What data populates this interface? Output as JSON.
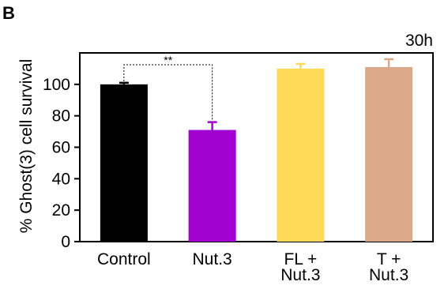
{
  "panel_label": "B",
  "chart_data": {
    "type": "bar",
    "title": "",
    "annotation": "30h",
    "xlabel": "",
    "ylabel": "% Ghost(3) cell survival",
    "ylim": [
      0,
      120
    ],
    "yticks": [
      0,
      20,
      40,
      60,
      80,
      100
    ],
    "grid": false,
    "legend": "none",
    "categories": [
      [
        "Control"
      ],
      [
        "Nut.3"
      ],
      [
        "FL +",
        "Nut.3"
      ],
      [
        "T +",
        "Nut.3"
      ]
    ],
    "values": [
      100,
      71,
      110,
      111
    ],
    "errors": [
      1,
      5,
      3,
      5
    ],
    "colors": [
      "#000000",
      "#a100d1",
      "#fed957",
      "#dba98a"
    ],
    "significance": {
      "from": 0,
      "to": 1,
      "label": "**"
    }
  }
}
